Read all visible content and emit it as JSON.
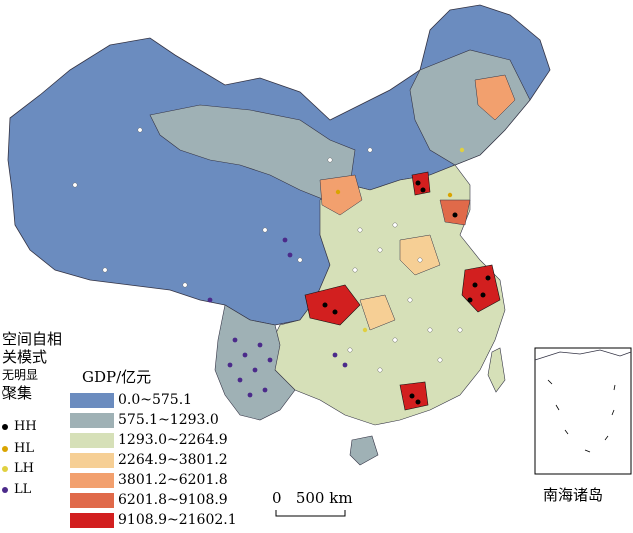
{
  "cluster_legend": {
    "title_line1": "空间自相",
    "title_line2": "关模式",
    "title_line3": "无明显",
    "title_line4": "聚集",
    "items": [
      {
        "label": "",
        "color": "#ffffff"
      },
      {
        "label": "HH",
        "color": "#000000"
      },
      {
        "label": "HL",
        "color": "#d9a400"
      },
      {
        "label": "LH",
        "color": "#e0d040"
      },
      {
        "label": "LL",
        "color": "#4b2a8a"
      }
    ]
  },
  "gdp_legend": {
    "title": "GDP/亿元",
    "classes": [
      {
        "label": "0.0~575.1",
        "color": "#6b8cbf"
      },
      {
        "label": "575.1~1293.0",
        "color": "#9fb1b5"
      },
      {
        "label": "1293.0~2264.9",
        "color": "#d6e0b8"
      },
      {
        "label": "2264.9~3801.2",
        "color": "#f6cf95"
      },
      {
        "label": "3801.2~6201.8",
        "color": "#f2a06e"
      },
      {
        "label": "6201.8~9108.9",
        "color": "#e06a4a"
      },
      {
        "label": "9108.9~21602.1",
        "color": "#d21f1f"
      }
    ]
  },
  "scale_bar": {
    "text": "0   500 km"
  },
  "inset": {
    "label": "南海诸岛"
  }
}
